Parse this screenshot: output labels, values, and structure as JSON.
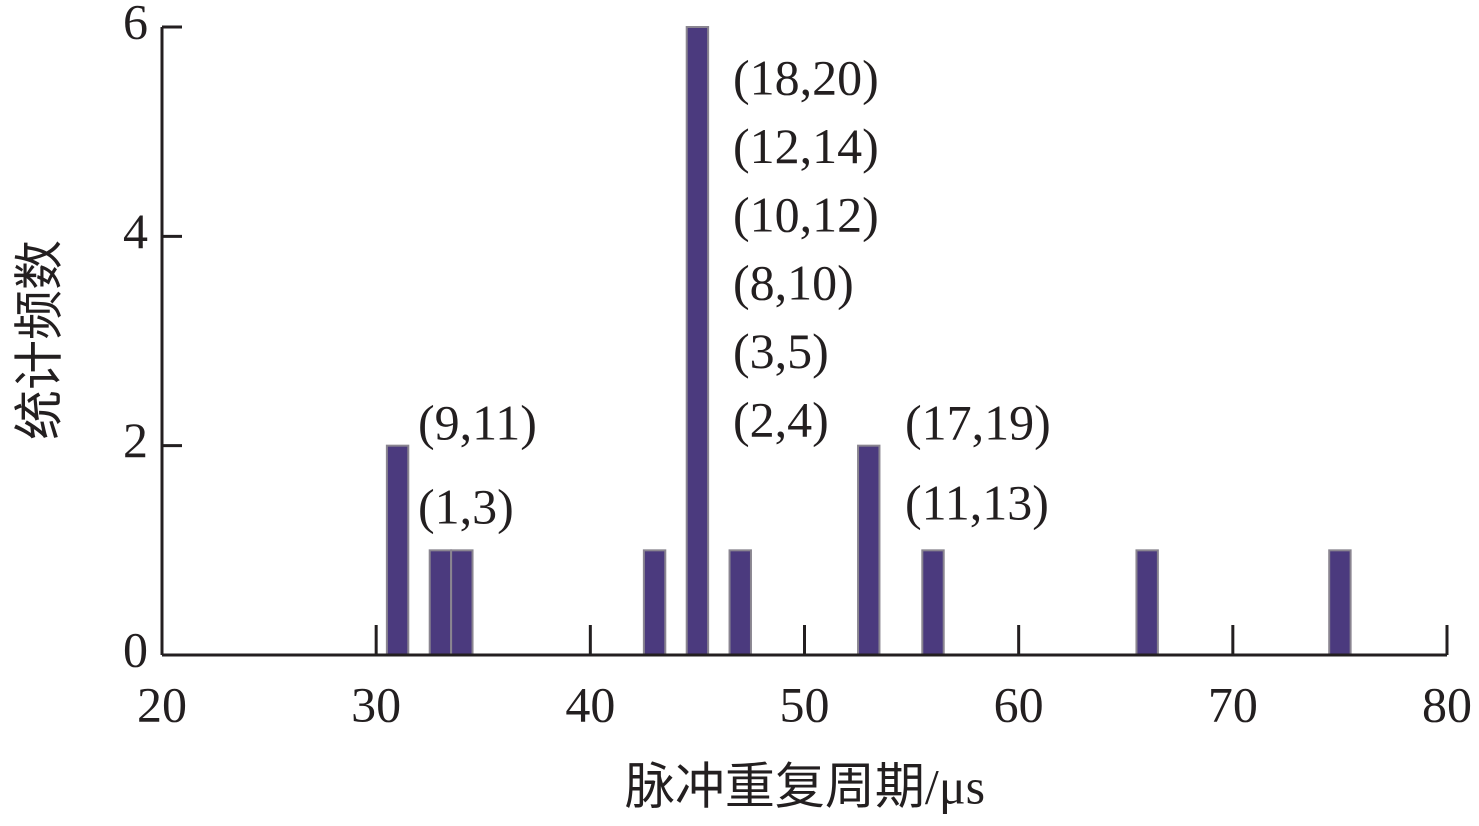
{
  "chart_data": {
    "type": "bar",
    "x_label": "脉冲重复周期/μs",
    "y_label": "统计频数",
    "x": [
      31,
      33,
      34,
      43,
      45,
      47,
      53,
      56,
      66,
      75
    ],
    "values": [
      2,
      1,
      1,
      1,
      6,
      1,
      2,
      1,
      1,
      1
    ],
    "color": "#4b3a7e",
    "xlim": [
      20,
      80
    ],
    "xticks": [
      20,
      30,
      40,
      50,
      60,
      70,
      80
    ],
    "ylim": [
      0,
      6
    ],
    "yticks": [
      0,
      2,
      4,
      6
    ],
    "annotations": [
      [
        "(9,11)",
        "(1,3)"
      ],
      [
        "(18,20)",
        "(12,14)",
        "(10,12)",
        "(8,10)",
        "(3,5)",
        "(2,4)"
      ],
      [
        "(17,19)",
        "(11,13)"
      ]
    ]
  }
}
